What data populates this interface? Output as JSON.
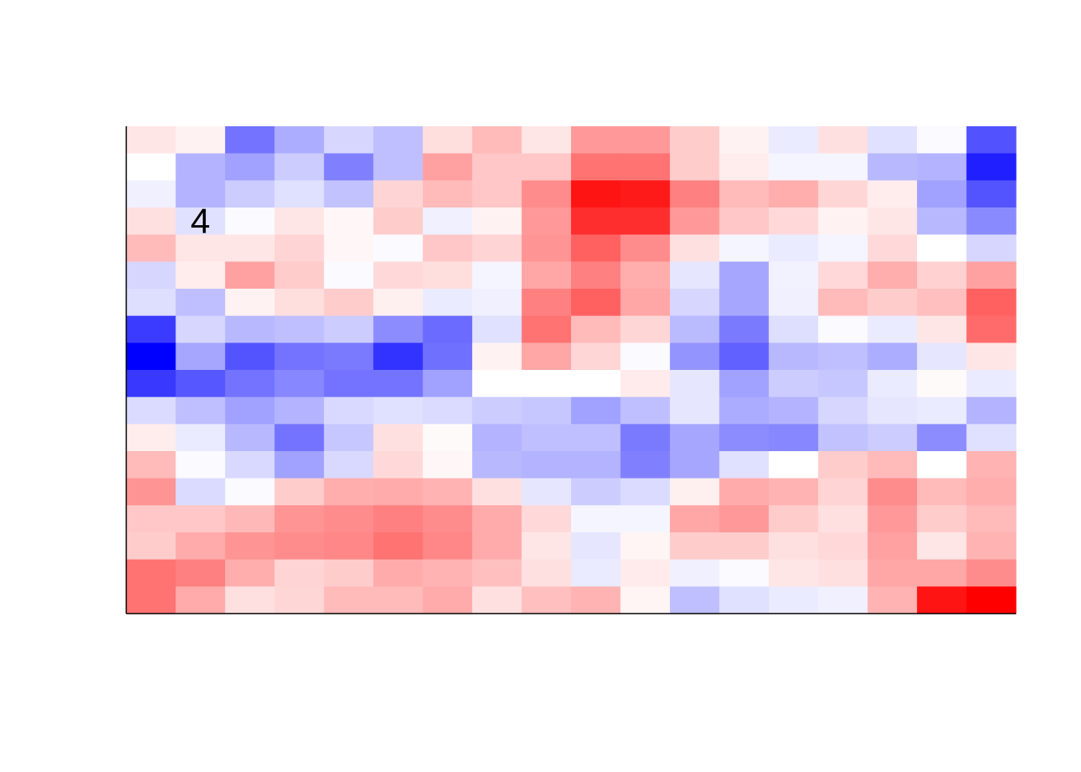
{
  "chart_data": {
    "type": "heatmap",
    "n_rows": 18,
    "n_cols": 18,
    "grid": false,
    "value_range": [
      -1,
      1
    ],
    "colors": {
      "negative": "#0000ff",
      "zero": "#ffffff",
      "positive": "#ff0000",
      "axis": "#000000",
      "label": "#000000"
    },
    "values": [
      [
        0.1,
        0.05,
        -0.55,
        -0.32,
        -0.16,
        -0.25,
        0.13,
        0.27,
        0.1,
        0.4,
        0.4,
        0.2,
        0.05,
        -0.08,
        0.12,
        -0.12,
        -0.02,
        -0.68
      ],
      [
        0.0,
        -0.3,
        -0.37,
        -0.2,
        -0.5,
        -0.25,
        0.37,
        0.22,
        0.22,
        0.55,
        0.55,
        0.2,
        0.07,
        -0.04,
        -0.04,
        -0.28,
        -0.3,
        -0.88
      ],
      [
        -0.06,
        -0.3,
        -0.2,
        -0.12,
        -0.24,
        0.17,
        0.27,
        0.22,
        0.45,
        0.92,
        0.9,
        0.5,
        0.27,
        0.32,
        0.16,
        0.07,
        -0.37,
        -0.67
      ],
      [
        0.12,
        -0.12,
        -0.02,
        0.1,
        0.03,
        0.2,
        -0.06,
        0.05,
        0.4,
        0.82,
        0.82,
        0.4,
        0.22,
        0.15,
        0.05,
        0.1,
        -0.28,
        -0.46
      ],
      [
        0.27,
        0.1,
        0.1,
        0.17,
        0.03,
        -0.02,
        0.22,
        0.17,
        0.42,
        0.62,
        0.45,
        0.12,
        -0.04,
        -0.08,
        -0.04,
        0.15,
        0.0,
        -0.16
      ],
      [
        -0.16,
        0.07,
        0.37,
        0.2,
        -0.02,
        0.15,
        0.13,
        -0.04,
        0.35,
        0.5,
        0.32,
        -0.1,
        -0.35,
        -0.05,
        0.15,
        0.32,
        0.18,
        0.37
      ],
      [
        -0.13,
        -0.25,
        0.05,
        0.13,
        0.2,
        0.06,
        -0.08,
        -0.06,
        0.5,
        0.62,
        0.35,
        -0.16,
        -0.35,
        -0.06,
        0.27,
        0.2,
        0.25,
        0.62
      ],
      [
        -0.77,
        -0.16,
        -0.28,
        -0.25,
        -0.2,
        -0.45,
        -0.58,
        -0.12,
        0.55,
        0.27,
        0.16,
        -0.27,
        -0.52,
        -0.13,
        -0.02,
        -0.08,
        0.1,
        0.58
      ],
      [
        -1.0,
        -0.35,
        -0.67,
        -0.55,
        -0.52,
        -0.8,
        -0.56,
        0.05,
        0.35,
        0.16,
        -0.02,
        -0.42,
        -0.62,
        -0.28,
        -0.25,
        -0.32,
        -0.1,
        0.1
      ],
      [
        -0.78,
        -0.66,
        -0.55,
        -0.47,
        -0.55,
        -0.55,
        -0.37,
        0.0,
        0.0,
        0.0,
        0.08,
        -0.1,
        -0.37,
        -0.2,
        -0.22,
        -0.08,
        0.02,
        -0.08
      ],
      [
        -0.14,
        -0.25,
        -0.37,
        -0.3,
        -0.15,
        -0.12,
        -0.14,
        -0.2,
        -0.22,
        -0.37,
        -0.25,
        -0.1,
        -0.33,
        -0.3,
        -0.16,
        -0.1,
        -0.08,
        -0.3
      ],
      [
        0.07,
        -0.08,
        -0.28,
        -0.55,
        -0.22,
        0.12,
        0.02,
        -0.3,
        -0.25,
        -0.25,
        -0.52,
        -0.35,
        -0.45,
        -0.47,
        -0.24,
        -0.2,
        -0.45,
        -0.12
      ],
      [
        0.27,
        -0.02,
        -0.15,
        -0.37,
        -0.15,
        0.15,
        0.03,
        -0.28,
        -0.3,
        -0.3,
        -0.5,
        -0.35,
        -0.12,
        0.0,
        0.2,
        0.27,
        0.0,
        0.3
      ],
      [
        0.42,
        -0.14,
        -0.02,
        0.2,
        0.32,
        0.33,
        0.3,
        0.12,
        -0.1,
        -0.2,
        -0.14,
        0.06,
        0.33,
        0.3,
        0.17,
        0.45,
        0.27,
        0.32
      ],
      [
        0.22,
        0.22,
        0.28,
        0.42,
        0.45,
        0.5,
        0.45,
        0.33,
        0.15,
        -0.04,
        -0.04,
        0.35,
        0.4,
        0.2,
        0.12,
        0.4,
        0.2,
        0.27
      ],
      [
        0.2,
        0.33,
        0.42,
        0.45,
        0.47,
        0.55,
        0.47,
        0.33,
        0.1,
        -0.1,
        0.04,
        0.2,
        0.2,
        0.12,
        0.15,
        0.37,
        0.1,
        0.3
      ],
      [
        0.55,
        0.5,
        0.32,
        0.17,
        0.2,
        0.33,
        0.3,
        0.25,
        0.12,
        -0.08,
        0.08,
        -0.06,
        -0.02,
        0.1,
        0.12,
        0.35,
        0.35,
        0.45
      ],
      [
        0.55,
        0.33,
        0.12,
        0.16,
        0.27,
        0.27,
        0.33,
        0.12,
        0.25,
        0.3,
        0.04,
        -0.25,
        -0.12,
        -0.08,
        -0.06,
        0.3,
        0.92,
        1.0
      ]
    ],
    "annotations": [
      {
        "text": "4",
        "row": 3,
        "col": 1
      }
    ]
  }
}
